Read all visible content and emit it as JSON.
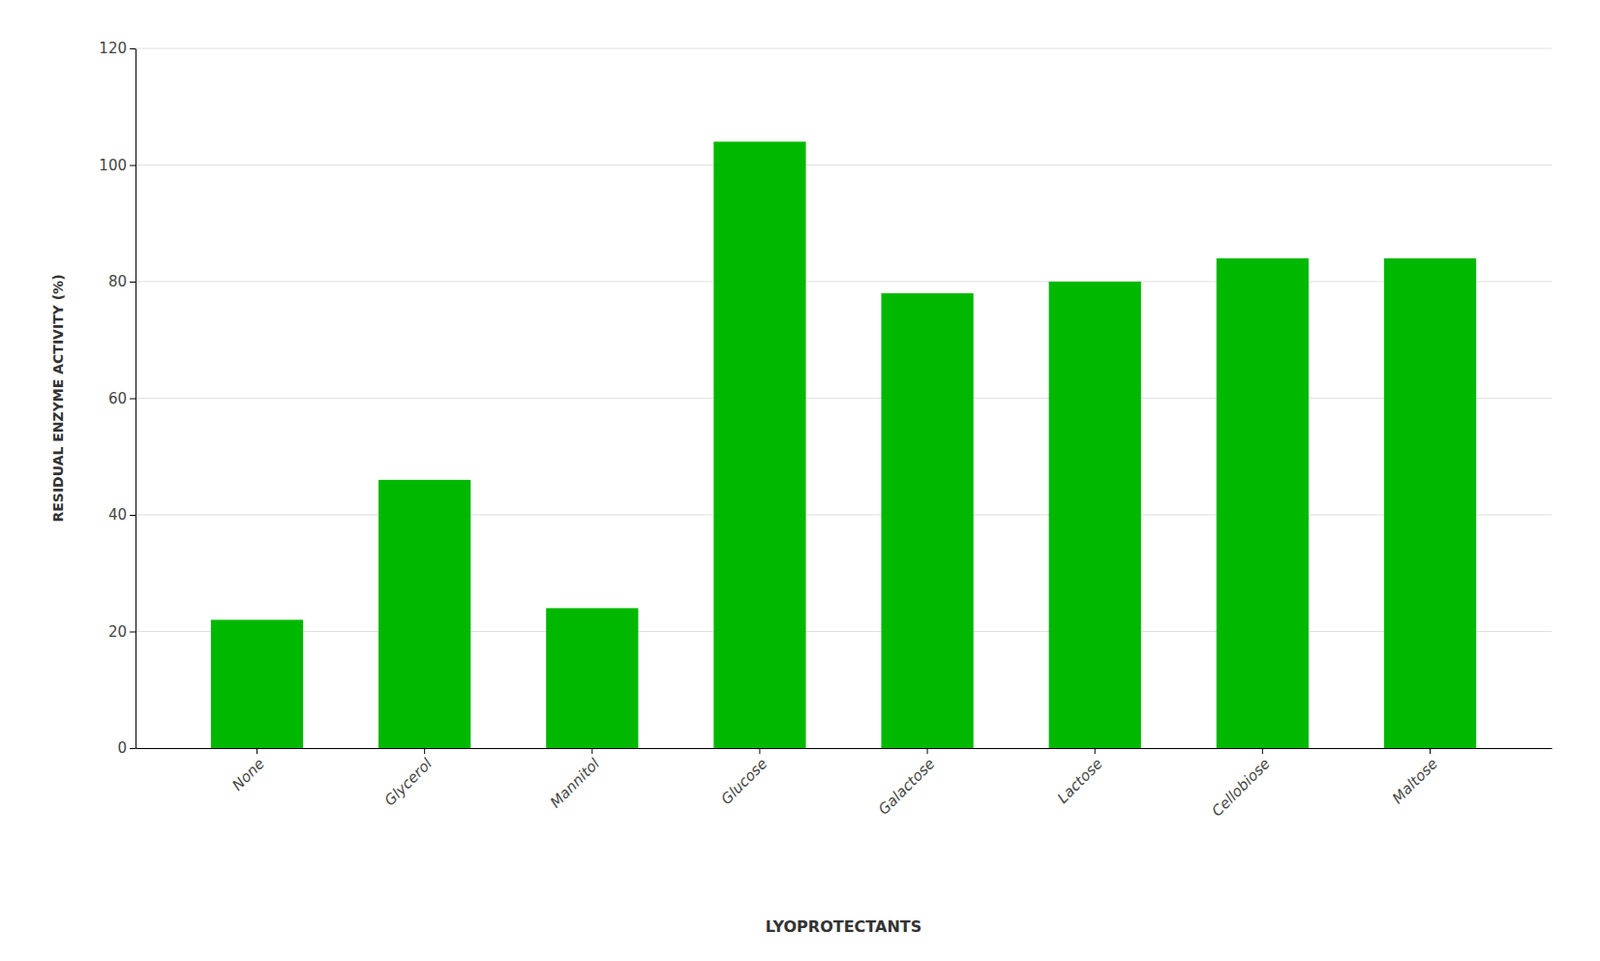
{
  "chart_data": {
    "type": "bar",
    "categories": [
      "None",
      "Glycerol",
      "Mannitol",
      "Glucose",
      "Galactose",
      "Lactose",
      "Cellobiose",
      "Maltose"
    ],
    "values": [
      22,
      46,
      24,
      104,
      78,
      80,
      84,
      84
    ],
    "color": "#00b800",
    "xlabel": "LYOPROTECTANTS",
    "ylabel": "RESIDUAL ENZYME ACTIVITY (%)",
    "ylim": [
      0,
      120
    ],
    "yticks": [
      0,
      20,
      40,
      60,
      80,
      100,
      120
    ],
    "grid": true
  }
}
